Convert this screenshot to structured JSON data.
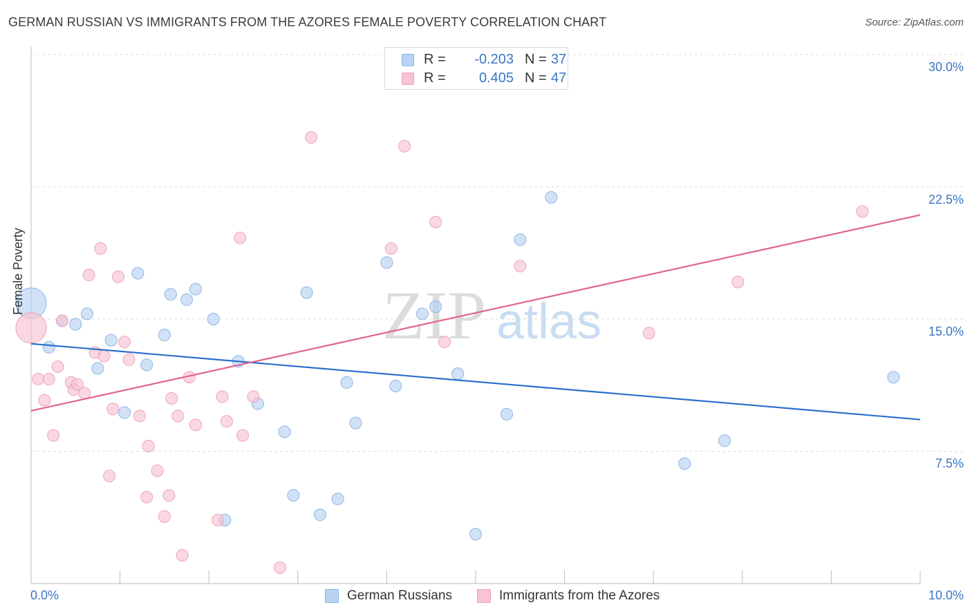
{
  "title": "GERMAN RUSSIAN VS IMMIGRANTS FROM THE AZORES FEMALE POVERTY CORRELATION CHART",
  "source": "Source: ZipAtlas.com",
  "watermark": {
    "zip": "ZIP",
    "atlas": "atlas"
  },
  "legend": {
    "rows": [
      {
        "r_label": "R =",
        "r_value": "-0.203",
        "n_label": "N =",
        "n_value": "37"
      },
      {
        "r_label": "R =",
        "r_value": "0.405",
        "n_label": "N =",
        "n_value": "47"
      }
    ]
  },
  "bottom_legend": {
    "series1": "German Russians",
    "series2": "Immigrants from the Azores"
  },
  "axes": {
    "ylabel": "Female Poverty",
    "yticks": [
      "30.0%",
      "22.5%",
      "15.0%",
      "7.5%"
    ],
    "xticks": {
      "left": "0.0%",
      "right": "10.0%"
    }
  },
  "colors": {
    "blue_fill": "#b8d3f3",
    "blue_stroke": "#8fb4e4",
    "blue_line": "#2a6fcb",
    "pink_fill": "#f8c3d3",
    "pink_stroke": "#eea3bb",
    "pink_line": "#e0648c",
    "tick_text": "#3a75c4",
    "grid": "#dddddd"
  },
  "chart_data": {
    "type": "scatter",
    "title": "GERMAN RUSSIAN VS IMMIGRANTS FROM THE AZORES FEMALE POVERTY CORRELATION CHART",
    "xlabel": "",
    "ylabel": "Female Poverty",
    "xlim": [
      0,
      10
    ],
    "ylim": [
      0,
      30
    ],
    "grid": true,
    "legend": "top-center",
    "series": [
      {
        "name": "German Russians",
        "r": -0.203,
        "n": 37,
        "trend": {
          "x": [
            0,
            10
          ],
          "y": [
            13.6,
            9.3
          ]
        },
        "points": [
          {
            "x": 0.0,
            "y": 15.9,
            "big": true
          },
          {
            "x": 0.2,
            "y": 13.4
          },
          {
            "x": 0.35,
            "y": 14.9
          },
          {
            "x": 0.5,
            "y": 14.7
          },
          {
            "x": 0.63,
            "y": 15.3
          },
          {
            "x": 0.75,
            "y": 12.2
          },
          {
            "x": 0.9,
            "y": 13.8
          },
          {
            "x": 1.05,
            "y": 9.7
          },
          {
            "x": 1.2,
            "y": 17.6
          },
          {
            "x": 1.3,
            "y": 12.4
          },
          {
            "x": 1.5,
            "y": 14.1
          },
          {
            "x": 1.57,
            "y": 16.4
          },
          {
            "x": 1.75,
            "y": 16.1
          },
          {
            "x": 1.85,
            "y": 16.7
          },
          {
            "x": 2.05,
            "y": 15.0
          },
          {
            "x": 2.18,
            "y": 3.6
          },
          {
            "x": 2.33,
            "y": 12.6
          },
          {
            "x": 2.55,
            "y": 10.2
          },
          {
            "x": 2.85,
            "y": 8.6
          },
          {
            "x": 2.95,
            "y": 5.0
          },
          {
            "x": 3.1,
            "y": 16.5
          },
          {
            "x": 3.25,
            "y": 3.9
          },
          {
            "x": 3.45,
            "y": 4.8
          },
          {
            "x": 3.55,
            "y": 11.4
          },
          {
            "x": 3.65,
            "y": 9.1
          },
          {
            "x": 4.0,
            "y": 18.2
          },
          {
            "x": 4.1,
            "y": 11.2
          },
          {
            "x": 4.4,
            "y": 15.3
          },
          {
            "x": 4.55,
            "y": 15.7
          },
          {
            "x": 4.8,
            "y": 11.9
          },
          {
            "x": 5.0,
            "y": 2.8
          },
          {
            "x": 5.35,
            "y": 9.6
          },
          {
            "x": 5.5,
            "y": 19.5
          },
          {
            "x": 5.85,
            "y": 21.9
          },
          {
            "x": 7.35,
            "y": 6.8
          },
          {
            "x": 7.8,
            "y": 8.1
          },
          {
            "x": 9.7,
            "y": 11.7
          }
        ]
      },
      {
        "name": "Immigrants from the Azores",
        "r": 0.405,
        "n": 47,
        "trend": {
          "x": [
            0,
            10
          ],
          "y": [
            9.8,
            20.9
          ]
        },
        "points": [
          {
            "x": 0.0,
            "y": 14.5,
            "big": true
          },
          {
            "x": 0.08,
            "y": 11.6
          },
          {
            "x": 0.15,
            "y": 10.4
          },
          {
            "x": 0.2,
            "y": 11.6
          },
          {
            "x": 0.25,
            "y": 8.4
          },
          {
            "x": 0.3,
            "y": 12.3
          },
          {
            "x": 0.35,
            "y": 14.9
          },
          {
            "x": 0.45,
            "y": 11.4
          },
          {
            "x": 0.48,
            "y": 11.0
          },
          {
            "x": 0.52,
            "y": 11.3
          },
          {
            "x": 0.6,
            "y": 10.8
          },
          {
            "x": 0.65,
            "y": 17.5
          },
          {
            "x": 0.72,
            "y": 13.1
          },
          {
            "x": 0.78,
            "y": 19.0
          },
          {
            "x": 0.82,
            "y": 12.9
          },
          {
            "x": 0.88,
            "y": 6.1
          },
          {
            "x": 0.92,
            "y": 9.9
          },
          {
            "x": 0.98,
            "y": 17.4
          },
          {
            "x": 1.05,
            "y": 13.7
          },
          {
            "x": 1.1,
            "y": 12.7
          },
          {
            "x": 1.22,
            "y": 9.5
          },
          {
            "x": 1.3,
            "y": 4.9
          },
          {
            "x": 1.32,
            "y": 7.8
          },
          {
            "x": 1.42,
            "y": 6.4
          },
          {
            "x": 1.5,
            "y": 3.8
          },
          {
            "x": 1.55,
            "y": 5.0
          },
          {
            "x": 1.58,
            "y": 10.5
          },
          {
            "x": 1.65,
            "y": 9.5
          },
          {
            "x": 1.7,
            "y": 1.6
          },
          {
            "x": 1.78,
            "y": 11.7
          },
          {
            "x": 1.85,
            "y": 9.0
          },
          {
            "x": 2.1,
            "y": 3.6
          },
          {
            "x": 2.15,
            "y": 10.6
          },
          {
            "x": 2.2,
            "y": 9.2
          },
          {
            "x": 2.35,
            "y": 19.6
          },
          {
            "x": 2.38,
            "y": 8.4
          },
          {
            "x": 2.5,
            "y": 10.6
          },
          {
            "x": 2.8,
            "y": 0.9
          },
          {
            "x": 3.15,
            "y": 25.3
          },
          {
            "x": 4.05,
            "y": 19.0
          },
          {
            "x": 4.2,
            "y": 24.8
          },
          {
            "x": 4.55,
            "y": 20.5
          },
          {
            "x": 4.65,
            "y": 13.7
          },
          {
            "x": 5.5,
            "y": 18.0
          },
          {
            "x": 6.95,
            "y": 14.2
          },
          {
            "x": 7.95,
            "y": 17.1
          },
          {
            "x": 9.35,
            "y": 21.1
          }
        ]
      }
    ]
  }
}
